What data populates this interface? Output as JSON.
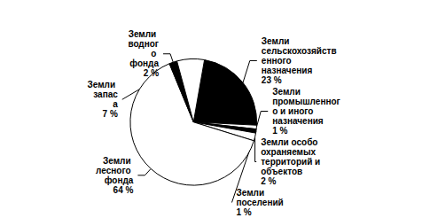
{
  "chart_data": {
    "type": "pie",
    "categories": [
      "Земли сельскохозяйственного назначения",
      "Земли промышленного и иного назначения",
      "Земли поселений",
      "Земли особо охраняемых территорий и объектов",
      "Земли лесного фонда",
      "Земли водного фонда",
      "Земли запаса"
    ],
    "values": [
      23,
      1,
      1,
      2,
      64,
      2,
      7
    ],
    "value_labels": [
      "23 %",
      "1 %",
      "1 %",
      "2 %",
      "64 %",
      "2 %",
      "7 %"
    ],
    "colors": [
      "#000000",
      "#ffffff",
      "#000000",
      "#ffffff",
      "#ffffff",
      "#000000",
      "#ffffff"
    ],
    "data_labels": true
  }
}
